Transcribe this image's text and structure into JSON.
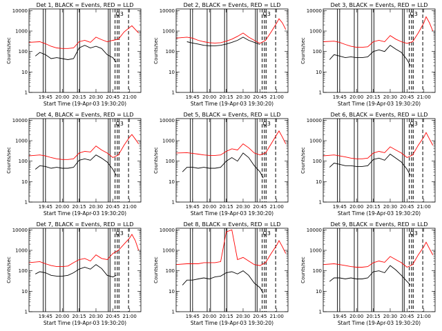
{
  "figure": {
    "x_ticks": [
      "19:45",
      "20:00",
      "20:15",
      "20:30",
      "20:45",
      "21:00"
    ],
    "y_ticks": [
      "1",
      "10",
      "100",
      "1000",
      "10000"
    ],
    "xlabel": "Start Time (19-Apr-03 19:30:20)",
    "ylabel": "Counts/sec",
    "marker_text": "Q3",
    "colors": {
      "events": "#000000",
      "lld": "#ff0000",
      "axes": "#000000"
    }
  },
  "chart_data": [
    {
      "type": "line",
      "title": "Det 1, BLACK = Events, RED = LLD",
      "ylabel": "Counts/sec",
      "xlabel": "Start Time (19-Apr-03 19:30:20)",
      "yscale": "log",
      "ylim": [
        1,
        12000
      ],
      "series": [
        {
          "name": "Events",
          "color": "#000000",
          "x": [
            "19:36",
            "19:40",
            "19:45",
            "19:50",
            "19:55",
            "20:00",
            "20:05",
            "20:10",
            "20:15",
            "20:20",
            "20:25",
            "20:30",
            "20:35",
            "20:40",
            "20:45",
            "20:48"
          ],
          "values": [
            60,
            90,
            70,
            45,
            50,
            45,
            40,
            45,
            150,
            200,
            150,
            180,
            140,
            70,
            50,
            30
          ]
        },
        {
          "name": "LLD",
          "color": "#ff0000",
          "x": [
            "19:30",
            "19:40",
            "19:45",
            "19:50",
            "19:55",
            "20:00",
            "20:05",
            "20:10",
            "20:15",
            "20:20",
            "20:25",
            "20:30",
            "20:35",
            "20:40",
            "20:45",
            "20:50",
            "20:55",
            "21:00",
            "21:02",
            "21:05",
            "21:08"
          ],
          "values": [
            280,
            300,
            240,
            180,
            150,
            140,
            140,
            150,
            300,
            350,
            280,
            500,
            380,
            300,
            350,
            400,
            900,
            1500,
            1800,
            1200,
            800
          ]
        }
      ]
    },
    {
      "type": "line",
      "title": "Det 2, BLACK = Events, RED = LLD",
      "ylabel": "Counts/sec",
      "xlabel": "Start Time (19-Apr-03 19:30:20)",
      "yscale": "log",
      "ylim": [
        1,
        12000
      ],
      "series": [
        {
          "name": "Events",
          "color": "#000000",
          "x": [
            "19:40",
            "19:45",
            "19:50",
            "19:55",
            "20:00",
            "20:05",
            "20:10",
            "20:15",
            "20:20",
            "20:25",
            "20:30",
            "20:35",
            "20:40",
            "20:45"
          ],
          "values": [
            300,
            260,
            230,
            200,
            190,
            190,
            200,
            230,
            280,
            350,
            500,
            350,
            280,
            220
          ]
        },
        {
          "name": "LLD",
          "color": "#ff0000",
          "x": [
            "19:30",
            "19:40",
            "19:45",
            "19:50",
            "19:55",
            "20:00",
            "20:05",
            "20:10",
            "20:15",
            "20:20",
            "20:25",
            "20:30",
            "20:35",
            "20:40",
            "20:45",
            "20:50",
            "20:55",
            "21:00",
            "21:02",
            "21:05",
            "21:08"
          ],
          "values": [
            450,
            500,
            450,
            350,
            300,
            270,
            260,
            270,
            320,
            400,
            550,
            800,
            500,
            350,
            250,
            350,
            900,
            2500,
            4000,
            2500,
            1200
          ]
        }
      ]
    },
    {
      "type": "line",
      "title": "Det 3, BLACK = Events, RED = LLD",
      "ylabel": "Counts/sec",
      "xlabel": "Start Time (19-Apr-03 19:30:20)",
      "yscale": "log",
      "ylim": [
        1,
        12000
      ],
      "series": [
        {
          "name": "Events",
          "color": "#000000",
          "x": [
            "19:36",
            "19:40",
            "19:45",
            "19:50",
            "19:55",
            "20:00",
            "20:05",
            "20:10",
            "20:15",
            "20:20",
            "20:25",
            "20:30",
            "20:35",
            "20:40",
            "20:45",
            "20:48"
          ],
          "values": [
            40,
            70,
            60,
            50,
            55,
            50,
            50,
            55,
            100,
            120,
            100,
            200,
            130,
            90,
            40,
            20
          ]
        },
        {
          "name": "LLD",
          "color": "#ff0000",
          "x": [
            "19:30",
            "19:40",
            "19:45",
            "19:50",
            "19:55",
            "20:00",
            "20:05",
            "20:10",
            "20:15",
            "20:20",
            "20:25",
            "20:30",
            "20:35",
            "20:40",
            "20:45",
            "20:50",
            "20:55",
            "21:00",
            "21:02",
            "21:05",
            "21:08"
          ],
          "values": [
            300,
            320,
            280,
            220,
            180,
            160,
            160,
            170,
            300,
            350,
            300,
            600,
            400,
            300,
            250,
            300,
            800,
            2500,
            5000,
            2500,
            1000
          ]
        }
      ]
    },
    {
      "type": "line",
      "title": "Det 4, BLACK = Events, RED = LLD",
      "ylabel": "Counts/sec",
      "xlabel": "Start Time (19-Apr-03 19:30:20)",
      "yscale": "log",
      "ylim": [
        1,
        12000
      ],
      "series": [
        {
          "name": "Events",
          "color": "#000000",
          "x": [
            "19:36",
            "19:40",
            "19:45",
            "19:50",
            "19:55",
            "20:00",
            "20:05",
            "20:10",
            "20:15",
            "20:20",
            "20:25",
            "20:30",
            "20:35",
            "20:40",
            "20:45",
            "20:48"
          ],
          "values": [
            40,
            60,
            55,
            45,
            50,
            45,
            45,
            50,
            110,
            130,
            110,
            200,
            140,
            90,
            40,
            20
          ]
        },
        {
          "name": "LLD",
          "color": "#ff0000",
          "x": [
            "19:30",
            "19:40",
            "19:45",
            "19:50",
            "19:55",
            "20:00",
            "20:05",
            "20:10",
            "20:15",
            "20:20",
            "20:25",
            "20:30",
            "20:35",
            "20:40",
            "20:45",
            "20:50",
            "20:55",
            "21:00",
            "21:02",
            "21:05",
            "21:08"
          ],
          "values": [
            180,
            200,
            180,
            150,
            130,
            120,
            120,
            130,
            250,
            300,
            280,
            550,
            350,
            250,
            150,
            200,
            600,
            1500,
            2000,
            1200,
            700
          ]
        }
      ]
    },
    {
      "type": "line",
      "title": "Det 5, BLACK = Events, RED = LLD",
      "ylabel": "Counts/sec",
      "xlabel": "Start Time (19-Apr-03 19:30:20)",
      "yscale": "log",
      "ylim": [
        1,
        12000
      ],
      "series": [
        {
          "name": "Events",
          "color": "#000000",
          "x": [
            "19:36",
            "19:40",
            "19:45",
            "19:50",
            "19:55",
            "20:00",
            "20:05",
            "20:10",
            "20:15",
            "20:20",
            "20:25",
            "20:30",
            "20:35",
            "20:40",
            "20:45",
            "20:48"
          ],
          "values": [
            30,
            50,
            50,
            45,
            50,
            45,
            45,
            50,
            100,
            150,
            100,
            250,
            150,
            60,
            30,
            15
          ]
        },
        {
          "name": "LLD",
          "color": "#ff0000",
          "x": [
            "19:30",
            "19:40",
            "19:45",
            "19:50",
            "19:55",
            "20:00",
            "20:05",
            "20:10",
            "20:15",
            "20:20",
            "20:25",
            "20:30",
            "20:35",
            "20:40",
            "20:45",
            "20:50",
            "20:55",
            "21:00",
            "21:02",
            "21:05",
            "21:08"
          ],
          "values": [
            250,
            260,
            240,
            220,
            200,
            190,
            190,
            200,
            300,
            400,
            350,
            700,
            450,
            250,
            200,
            250,
            700,
            2000,
            3000,
            1500,
            700
          ]
        }
      ]
    },
    {
      "type": "line",
      "title": "Det 6, BLACK = Events, RED = LLD",
      "ylabel": "Counts/sec",
      "xlabel": "Start Time (19-Apr-03 19:30:20)",
      "yscale": "log",
      "ylim": [
        1,
        12000
      ],
      "series": [
        {
          "name": "Events",
          "color": "#000000",
          "x": [
            "19:36",
            "19:40",
            "19:45",
            "19:50",
            "19:55",
            "20:00",
            "20:05",
            "20:10",
            "20:15",
            "20:20",
            "20:25",
            "20:30",
            "20:35",
            "20:40",
            "20:45",
            "20:48"
          ],
          "values": [
            50,
            80,
            70,
            60,
            60,
            55,
            55,
            60,
            120,
            140,
            110,
            220,
            140,
            90,
            40,
            20
          ]
        },
        {
          "name": "LLD",
          "color": "#ff0000",
          "x": [
            "19:30",
            "19:40",
            "19:45",
            "19:50",
            "19:55",
            "20:00",
            "20:05",
            "20:10",
            "20:15",
            "20:20",
            "20:25",
            "20:30",
            "20:35",
            "20:40",
            "20:45",
            "20:50",
            "20:55",
            "21:00",
            "21:02",
            "21:05",
            "21:08"
          ],
          "values": [
            180,
            200,
            180,
            160,
            140,
            130,
            130,
            140,
            250,
            300,
            260,
            500,
            350,
            250,
            150,
            200,
            600,
            1500,
            2500,
            1200,
            600
          ]
        }
      ]
    },
    {
      "type": "line",
      "title": "Det 7, BLACK = Events, RED = LLD",
      "ylabel": "Counts/sec",
      "xlabel": "Start Time (19-Apr-03 19:30:20)",
      "yscale": "log",
      "ylim": [
        1,
        12000
      ],
      "series": [
        {
          "name": "Events",
          "color": "#000000",
          "x": [
            "19:36",
            "19:40",
            "19:45",
            "19:50",
            "19:55",
            "20:00",
            "20:05",
            "20:10",
            "20:15",
            "20:20",
            "20:25",
            "20:30",
            "20:35",
            "20:40",
            "20:45",
            "20:48"
          ],
          "values": [
            70,
            90,
            80,
            60,
            55,
            55,
            60,
            80,
            120,
            150,
            120,
            200,
            130,
            60,
            50,
            60
          ]
        },
        {
          "name": "LLD",
          "color": "#ff0000",
          "x": [
            "19:30",
            "19:40",
            "19:45",
            "19:50",
            "19:55",
            "20:00",
            "20:05",
            "20:10",
            "20:15",
            "20:20",
            "20:25",
            "20:30",
            "20:35",
            "20:40",
            "20:45",
            "20:50",
            "20:55",
            "21:00",
            "21:02",
            "21:05",
            "21:08"
          ],
          "values": [
            250,
            280,
            220,
            180,
            160,
            160,
            170,
            250,
            350,
            400,
            300,
            600,
            400,
            350,
            700,
            1000,
            2000,
            4000,
            6000,
            3000,
            1000
          ]
        }
      ]
    },
    {
      "type": "line",
      "title": "Det 8, BLACK = Events, RED = LLD",
      "ylabel": "Counts/sec",
      "xlabel": "Start Time (19-Apr-03 19:30:20)",
      "yscale": "log",
      "ylim": [
        1,
        12000
      ],
      "series": [
        {
          "name": "Events",
          "color": "#000000",
          "x": [
            "19:36",
            "19:40",
            "19:45",
            "19:50",
            "19:55",
            "20:00",
            "20:05",
            "20:10",
            "20:15",
            "20:20",
            "20:25",
            "20:30",
            "20:35",
            "20:40",
            "20:45",
            "20:48"
          ],
          "values": [
            20,
            35,
            35,
            40,
            45,
            40,
            50,
            55,
            80,
            90,
            70,
            100,
            60,
            25,
            15,
            8
          ]
        },
        {
          "name": "LLD",
          "color": "#ff0000",
          "x": [
            "19:30",
            "19:40",
            "19:45",
            "19:50",
            "19:55",
            "20:00",
            "20:05",
            "20:10",
            "20:15",
            "20:20",
            "20:25",
            "20:30",
            "20:35",
            "20:40",
            "20:45",
            "20:50",
            "20:55",
            "21:00",
            "21:02",
            "21:05",
            "21:08"
          ],
          "values": [
            200,
            220,
            220,
            220,
            250,
            250,
            250,
            280,
            8000,
            10000,
            350,
            450,
            300,
            200,
            180,
            250,
            700,
            1800,
            3000,
            1500,
            700
          ]
        }
      ]
    },
    {
      "type": "line",
      "title": "Det 9, BLACK = Events, RED = LLD",
      "ylabel": "Counts/sec",
      "xlabel": "Start Time (19-Apr-03 19:30:20)",
      "yscale": "log",
      "ylim": [
        1,
        12000
      ],
      "series": [
        {
          "name": "Events",
          "color": "#000000",
          "x": [
            "19:36",
            "19:40",
            "19:45",
            "19:50",
            "19:55",
            "20:00",
            "20:05",
            "20:10",
            "20:15",
            "20:20",
            "20:25",
            "20:30",
            "20:35",
            "20:40",
            "20:45",
            "20:48"
          ],
          "values": [
            30,
            45,
            45,
            40,
            45,
            40,
            40,
            45,
            90,
            100,
            80,
            180,
            110,
            60,
            30,
            20
          ]
        },
        {
          "name": "LLD",
          "color": "#ff0000",
          "x": [
            "19:30",
            "19:40",
            "19:45",
            "19:50",
            "19:55",
            "20:00",
            "20:05",
            "20:10",
            "20:15",
            "20:20",
            "20:25",
            "20:30",
            "20:35",
            "20:40",
            "20:45",
            "20:50",
            "20:55",
            "21:00",
            "21:02",
            "21:05",
            "21:08"
          ],
          "values": [
            200,
            220,
            200,
            180,
            160,
            150,
            150,
            160,
            250,
            300,
            260,
            500,
            350,
            250,
            150,
            200,
            600,
            1500,
            2500,
            1200,
            600
          ]
        }
      ]
    }
  ]
}
